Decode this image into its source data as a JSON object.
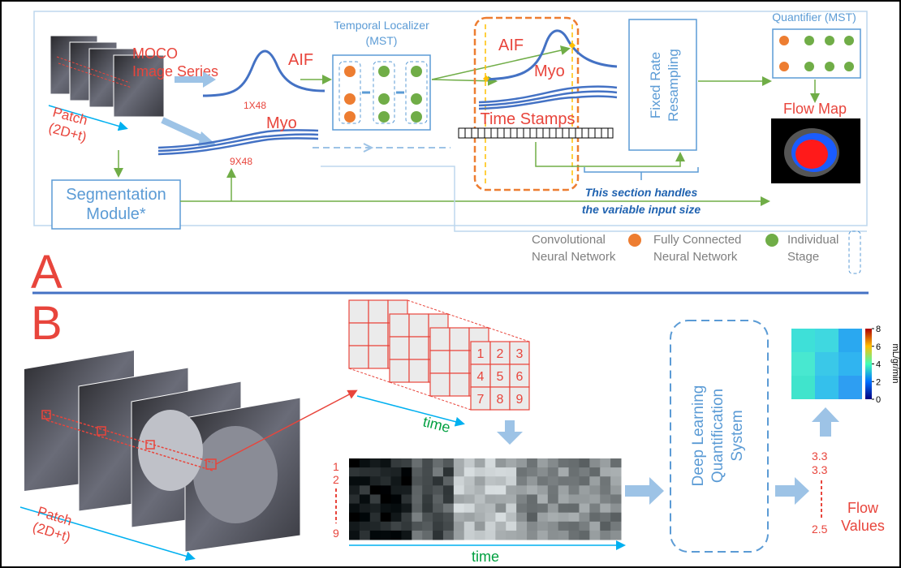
{
  "panel_a": {
    "label": "A",
    "moco_label": [
      "MOCO",
      "Image Series"
    ],
    "patch_label": [
      "Patch",
      "(2D+t)"
    ],
    "aif_curve": {
      "label": "AIF",
      "size": "1X48"
    },
    "myo_curve": {
      "label": "Myo",
      "size": "9X48"
    },
    "temporal_localizer": [
      "Temporal Localizer",
      "(MST)"
    ],
    "resampling_input": {
      "aif": "AIF",
      "myo": "Myo",
      "time_stamps": "Time Stamps"
    },
    "resampling": [
      "Fixed Rate",
      "Resampling"
    ],
    "quantifier": "Quantifier (MST)",
    "flow_map": "Flow Map",
    "segmentation": [
      "Segmentation",
      "Module*"
    ],
    "note": [
      "This section handles",
      "the variable input size"
    ],
    "legend": [
      {
        "label": [
          "Convolutional",
          "Neural Network"
        ]
      },
      {
        "label": [
          "Fully Connected",
          "Neural Network"
        ]
      },
      {
        "label": [
          "Individual",
          "Stage"
        ]
      }
    ]
  },
  "panel_b": {
    "label": "B",
    "patch_label": [
      "Patch",
      "(2D+t)"
    ],
    "grid_numbers": [
      "1",
      "2",
      "3",
      "4",
      "5",
      "6",
      "7",
      "8",
      "9"
    ],
    "grid_axis": "time",
    "row_labels": [
      "1",
      "2",
      "9"
    ],
    "matrix_axis": "time",
    "system": [
      "Deep Learning",
      "Quantification",
      "System"
    ],
    "colorbar": {
      "ticks": [
        0,
        2,
        4,
        6,
        8
      ],
      "label": "mL/gr/min"
    },
    "flow_values": [
      "3.3",
      "3.3",
      "2.5"
    ],
    "flow_label": [
      "Flow",
      "Values"
    ]
  }
}
